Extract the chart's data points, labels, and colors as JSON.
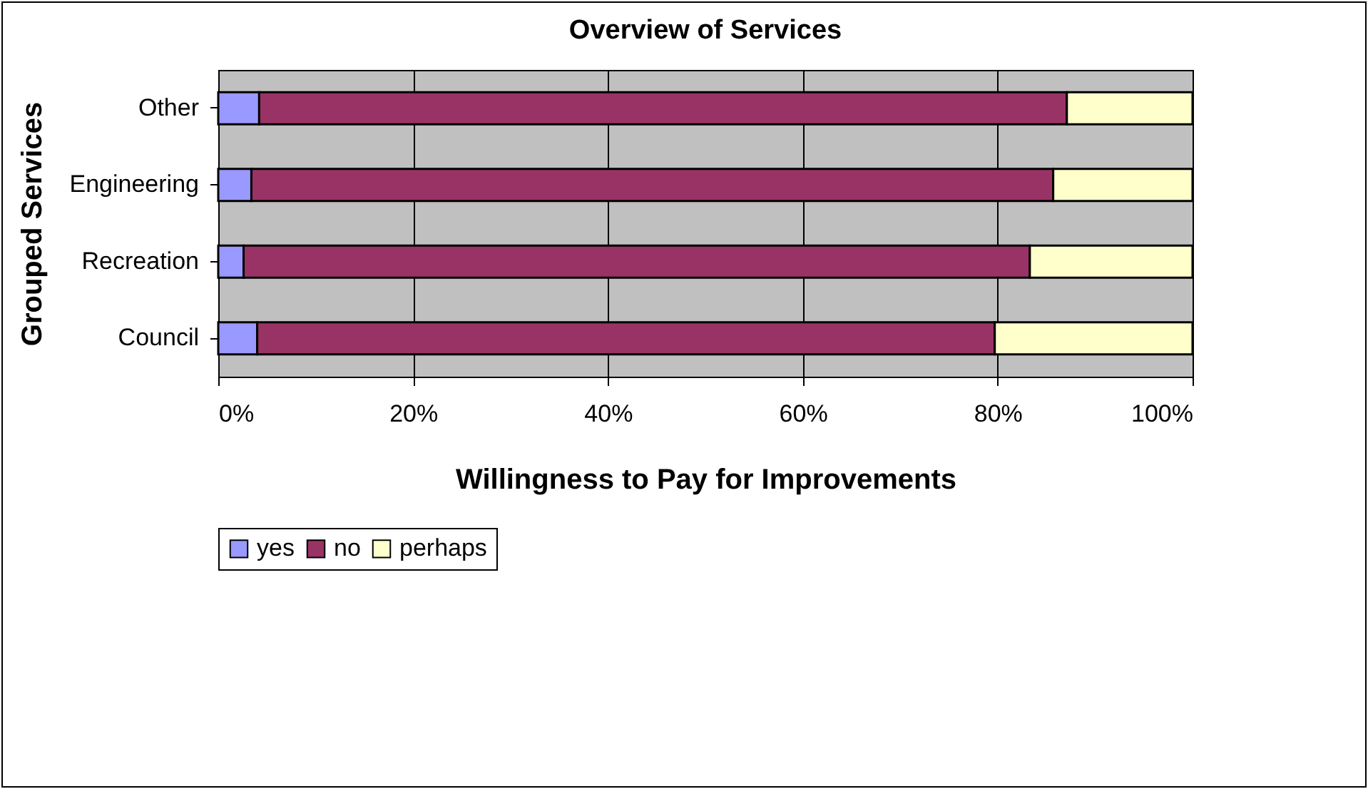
{
  "chart_data": {
    "type": "bar",
    "orientation": "horizontal",
    "stacked": true,
    "title": "Overview of Services",
    "xlabel": "Willingness to Pay for Improvements",
    "ylabel": "Grouped Services",
    "categories": [
      "Other",
      "Engineering",
      "Recreation",
      "Council"
    ],
    "series": [
      {
        "name": "yes",
        "color": "#9999ff",
        "values": [
          4.2,
          3.4,
          2.6,
          4.0
        ]
      },
      {
        "name": "no",
        "color": "#993366",
        "values": [
          82.9,
          82.3,
          80.7,
          75.7
        ]
      },
      {
        "name": "perhaps",
        "color": "#ffffcc",
        "values": [
          12.9,
          14.3,
          16.7,
          20.3
        ]
      }
    ],
    "xlim": [
      0,
      100
    ],
    "xticks": [
      {
        "value": 0,
        "label": "0%"
      },
      {
        "value": 20,
        "label": "20%"
      },
      {
        "value": 40,
        "label": "40%"
      },
      {
        "value": 60,
        "label": "60%"
      },
      {
        "value": 80,
        "label": "80%"
      },
      {
        "value": 100,
        "label": "100%"
      }
    ],
    "grid": "x",
    "legend": "bottom"
  }
}
